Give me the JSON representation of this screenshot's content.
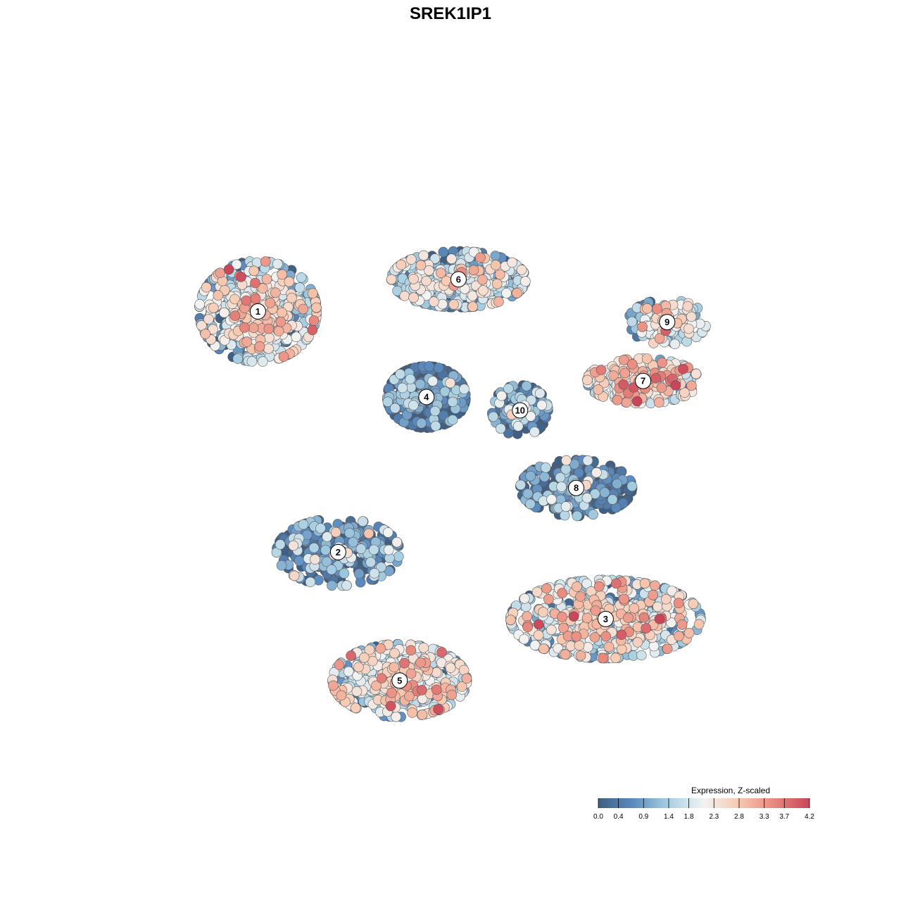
{
  "chart_data": {
    "type": "scatter",
    "title": "SREK1IP1",
    "xlabel": "",
    "ylabel": "",
    "grid": false,
    "axes_visible": false,
    "color_scale": {
      "title": "Expression, Z-scaled",
      "min": 0.0,
      "max": 4.2,
      "ticks": [
        "0.0",
        "0.4",
        "0.9",
        "1.4",
        "1.8",
        "2.3",
        "2.8",
        "3.3",
        "3.7",
        "4.2"
      ],
      "tick_values": [
        0.0,
        0.4,
        0.9,
        1.4,
        1.8,
        2.3,
        2.8,
        3.3,
        3.7,
        4.2
      ],
      "colors": [
        "#3f5f85",
        "#5b8bbf",
        "#a9d0e2",
        "#f2f3f3",
        "#f7c8b0",
        "#e8877c",
        "#c8455a"
      ],
      "legend_position": "bottom-right"
    },
    "clusters": [
      {
        "label": "1",
        "x": -7.2,
        "y": 5.2,
        "spread_x": 2.1,
        "spread_y": 1.8,
        "mean_expr": 1.9,
        "n": 520
      },
      {
        "label": "6",
        "x": 0.3,
        "y": 6.4,
        "spread_x": 2.4,
        "spread_y": 1.0,
        "mean_expr": 1.5,
        "n": 460
      },
      {
        "label": "4",
        "x": -0.9,
        "y": 2.0,
        "spread_x": 1.4,
        "spread_y": 1.1,
        "mean_expr": 0.3,
        "n": 420
      },
      {
        "label": "10",
        "x": 2.6,
        "y": 1.5,
        "spread_x": 1.0,
        "spread_y": 0.9,
        "mean_expr": 0.7,
        "n": 150
      },
      {
        "label": "9",
        "x": 8.1,
        "y": 4.8,
        "spread_x": 1.4,
        "spread_y": 0.8,
        "mean_expr": 1.8,
        "n": 150
      },
      {
        "label": "7",
        "x": 7.2,
        "y": 2.6,
        "spread_x": 2.0,
        "spread_y": 0.8,
        "mean_expr": 2.3,
        "n": 260
      },
      {
        "label": "8",
        "x": 4.7,
        "y": -1.4,
        "spread_x": 2.0,
        "spread_y": 1.0,
        "mean_expr": 0.4,
        "n": 330
      },
      {
        "label": "2",
        "x": -4.2,
        "y": -3.8,
        "spread_x": 2.2,
        "spread_y": 1.2,
        "mean_expr": 0.8,
        "n": 300
      },
      {
        "label": "3",
        "x": 5.8,
        "y": -6.3,
        "spread_x": 3.4,
        "spread_y": 1.4,
        "mean_expr": 2.0,
        "n": 620
      },
      {
        "label": "5",
        "x": -1.9,
        "y": -8.6,
        "spread_x": 2.4,
        "spread_y": 1.3,
        "mean_expr": 2.0,
        "n": 520
      }
    ]
  }
}
